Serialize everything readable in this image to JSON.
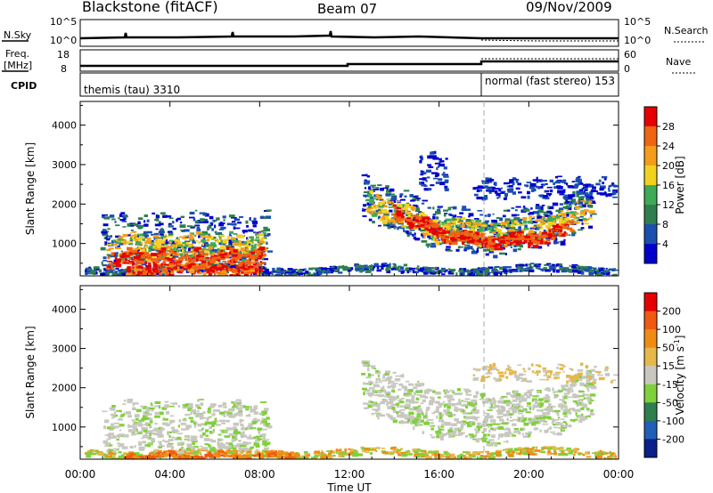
{
  "header": {
    "station": "Blackstone (fitACF)",
    "beam": "Beam 07",
    "date": "09/Nov/2009"
  },
  "top_panels": {
    "nsky_label": "N.Sky",
    "nsearch_label": "N.Search",
    "noise_ticks_left": [
      "10^5",
      "10^0"
    ],
    "noise_ticks_right": [
      "10^5",
      "10^0"
    ],
    "freq_label_line1": "Freq.",
    "freq_label_line2": "[MHz]",
    "freq_ticks": [
      "18",
      "8"
    ],
    "nave_label": "Nave",
    "nave_ticks": [
      "60",
      "0"
    ],
    "cpid_label": "CPID",
    "cpid_left": "themis (tau) 3310",
    "cpid_right": "normal (fast stereo) 153"
  },
  "colors": {
    "power_scale": [
      "#0000cc",
      "#1a4fb0",
      "#2e7f4d",
      "#3faa55",
      "#f2d21e",
      "#f59d1a",
      "#f06414",
      "#e60000"
    ],
    "velocity_scale": [
      "#0a1f8a",
      "#1f5fb8",
      "#2e7f4d",
      "#7fd13a",
      "#c8c8c0",
      "#e6b84a",
      "#f08c14",
      "#f05a10",
      "#e60000"
    ]
  },
  "chart_data": [
    {
      "type": "heatmap",
      "name": "power",
      "xlabel": "Time UT",
      "ylabel": "Slant Range [km]",
      "x_ticks": [
        "00:00",
        "04:00",
        "08:00",
        "12:00",
        "16:00",
        "20:00",
        "00:00"
      ],
      "y_ticks": [
        1000,
        2000,
        3000,
        4000
      ],
      "ylim": [
        180,
        4600
      ],
      "x_range_hours": [
        0,
        24
      ],
      "colorbar_label": "Power [dB]",
      "colorbar_ticks": [
        4,
        8,
        12,
        16,
        20,
        24,
        28
      ],
      "marker_time_hours": 18
    },
    {
      "type": "heatmap",
      "name": "velocity",
      "xlabel": "Time UT",
      "ylabel": "Slant Range [km]",
      "x_ticks": [
        "00:00",
        "04:00",
        "08:00",
        "12:00",
        "16:00",
        "20:00",
        "00:00"
      ],
      "y_ticks": [
        1000,
        2000,
        3000,
        4000
      ],
      "ylim": [
        180,
        4600
      ],
      "x_range_hours": [
        0,
        24
      ],
      "colorbar_label": "Velocity [m s",
      "colorbar_label_sup": "-1",
      "colorbar_label_end": "]",
      "colorbar_ticks": [
        200,
        100,
        50,
        15,
        -15,
        -50,
        -100,
        -200
      ],
      "marker_time_hours": 18
    }
  ]
}
